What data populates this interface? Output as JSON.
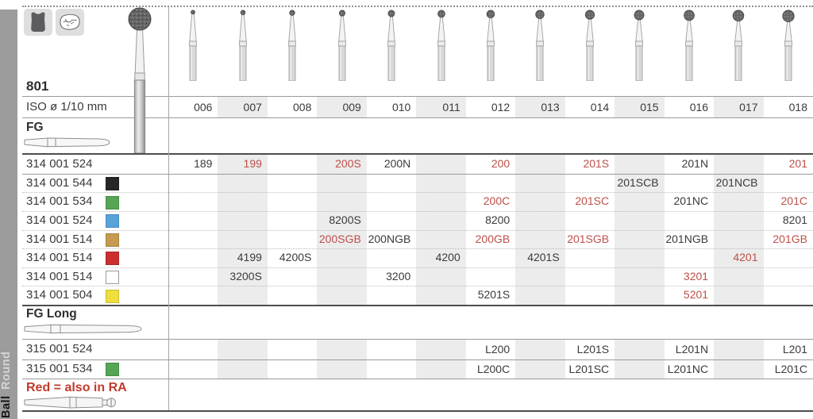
{
  "page": {
    "figure_number": "801",
    "iso_label": "ISO ø 1/10 mm",
    "sizes": [
      "006",
      "007",
      "008",
      "009",
      "010",
      "011",
      "012",
      "013",
      "014",
      "015",
      "016",
      "017",
      "018"
    ],
    "footer_note": "Red = also in RA"
  },
  "sidebar": {
    "group_name": "Round",
    "shape_name": "Ball"
  },
  "icons": {
    "tooth_icon": "molar-silhouette",
    "occlusal_icon": "occlusal-surface-sketch"
  },
  "colors": {
    "red_text": "#bf4f48",
    "footer_red": "#c23a2b",
    "stripe": "#ececec",
    "chip_black": "#262626",
    "chip_green": "#55a555",
    "chip_blue": "#57a3da",
    "chip_gold": "#c69a50",
    "chip_red": "#cb2f2f",
    "chip_white": "#ffffff",
    "chip_yellow": "#eedf3d"
  },
  "sections": [
    {
      "shank_label": "FG",
      "rows": [
        {
          "code": "314 001 524",
          "chip": null,
          "divider": "solid",
          "cells": [
            {
              "size": "006",
              "text": "189",
              "red": false
            },
            {
              "size": "007",
              "text": "199",
              "red": true
            },
            {
              "size": "009",
              "text": "200S",
              "red": true
            },
            {
              "size": "010",
              "text": "200N",
              "red": false
            },
            {
              "size": "012",
              "text": "200",
              "red": true
            },
            {
              "size": "014",
              "text": "201S",
              "red": true
            },
            {
              "size": "016",
              "text": "201N",
              "red": false
            },
            {
              "size": "018",
              "text": "201",
              "red": true
            }
          ]
        },
        {
          "code": "314 001 544",
          "chip": "black",
          "divider": "dotted",
          "cells": [
            {
              "size": "015",
              "text": "201SCB",
              "red": false
            },
            {
              "size": "017",
              "text": "201NCB",
              "red": false
            }
          ]
        },
        {
          "code": "314 001 534",
          "chip": "green",
          "divider": "dotted",
          "cells": [
            {
              "size": "012",
              "text": "200C",
              "red": true
            },
            {
              "size": "014",
              "text": "201SC",
              "red": true
            },
            {
              "size": "016",
              "text": "201NC",
              "red": false
            },
            {
              "size": "018",
              "text": "201C",
              "red": true
            }
          ]
        },
        {
          "code": "314 001 524",
          "chip": "blue",
          "divider": "dotted",
          "cells": [
            {
              "size": "009",
              "text": "8200S",
              "red": false
            },
            {
              "size": "012",
              "text": "8200",
              "red": false
            },
            {
              "size": "018",
              "text": "8201",
              "red": false
            }
          ]
        },
        {
          "code": "314 001 514",
          "chip": "gold",
          "divider": "dotted",
          "cells": [
            {
              "size": "009",
              "text": "200SGB",
              "red": true
            },
            {
              "size": "010",
              "text": "200NGB",
              "red": false
            },
            {
              "size": "012",
              "text": "200GB",
              "red": true
            },
            {
              "size": "014",
              "text": "201SGB",
              "red": true
            },
            {
              "size": "016",
              "text": "201NGB",
              "red": false
            },
            {
              "size": "018",
              "text": "201GB",
              "red": true
            }
          ]
        },
        {
          "code": "314 001 514",
          "chip": "red",
          "divider": "dotted",
          "cells": [
            {
              "size": "007",
              "text": "4199",
              "red": false
            },
            {
              "size": "008",
              "text": "4200S",
              "red": false
            },
            {
              "size": "011",
              "text": "4200",
              "red": false
            },
            {
              "size": "013",
              "text": "4201S",
              "red": false
            },
            {
              "size": "017",
              "text": "4201",
              "red": true
            }
          ]
        },
        {
          "code": "314 001 514",
          "chip": "white",
          "divider": "dotted",
          "cells": [
            {
              "size": "007",
              "text": "3200S",
              "red": false
            },
            {
              "size": "010",
              "text": "3200",
              "red": false
            },
            {
              "size": "016",
              "text": "3201",
              "red": true
            }
          ]
        },
        {
          "code": "314 001 504",
          "chip": "yellow",
          "divider": "none",
          "cells": [
            {
              "size": "012",
              "text": "5201S",
              "red": false
            },
            {
              "size": "016",
              "text": "5201",
              "red": true
            }
          ]
        }
      ]
    },
    {
      "shank_label": "FG Long",
      "rows": [
        {
          "code": "315 001 524",
          "chip": null,
          "divider": "solid",
          "cells": [
            {
              "size": "012",
              "text": "L200",
              "red": false
            },
            {
              "size": "014",
              "text": "L201S",
              "red": false
            },
            {
              "size": "016",
              "text": "L201N",
              "red": false
            },
            {
              "size": "018",
              "text": "L201",
              "red": false
            }
          ]
        },
        {
          "code": "315 001 534",
          "chip": "green",
          "divider": "none",
          "cells": [
            {
              "size": "012",
              "text": "L200C",
              "red": false
            },
            {
              "size": "014",
              "text": "L201SC",
              "red": false
            },
            {
              "size": "016",
              "text": "L201NC",
              "red": false
            },
            {
              "size": "018",
              "text": "L201C",
              "red": false
            }
          ]
        }
      ]
    }
  ]
}
